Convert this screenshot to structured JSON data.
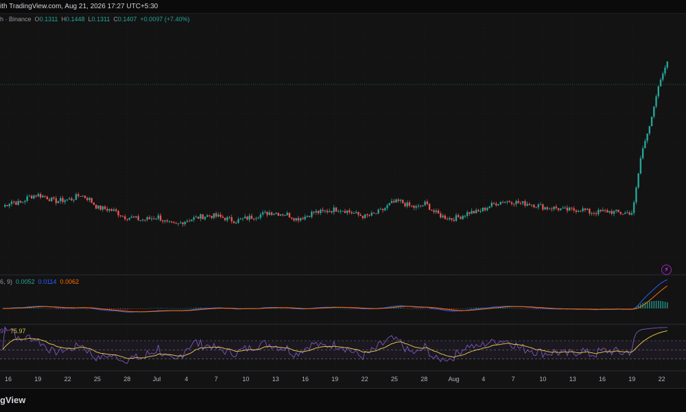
{
  "header": {
    "snapshot_text": "ith TradingView.com, Aug 21, 2026 17:27 UTC+5:30"
  },
  "legend": {
    "symbol_text": "h · Binance",
    "open_label": "O",
    "open": "0.1311",
    "high_label": "H",
    "high": "0.1448",
    "low_label": "L",
    "low": "0.1311",
    "close_label": "C",
    "close": "0.1407",
    "change": "+0.0097 (+7.40%)"
  },
  "macd_legend": {
    "params": "6, 9)",
    "histogram": "0.0052",
    "macd": "0.0114",
    "signal": "0.0062"
  },
  "rsi_legend": {
    "rsi": "97",
    "rsi_ma": "75.97"
  },
  "footer": {
    "logo_text": "gView"
  },
  "colors": {
    "up": "#26a69a",
    "down": "#ef5350",
    "macd_line": "#2962ff",
    "signal_line": "#ff6d00",
    "rsi_line": "#7e57c2",
    "rsi_ma": "#e0c34a",
    "grid": "#1f1f1f",
    "background": "#131313"
  },
  "chart_data": {
    "type": "candlestick",
    "x_ticks": [
      "16",
      "19",
      "22",
      "25",
      "28",
      "Jul",
      "4",
      "7",
      "10",
      "13",
      "16",
      "19",
      "22",
      "25",
      "28",
      "Aug",
      "4",
      "7",
      "10",
      "13",
      "16",
      "19",
      "22"
    ],
    "price_scale": {
      "min": 0.05,
      "max": 0.15
    },
    "price_series": [
      0.0745,
      0.077,
      0.076,
      0.079,
      0.08,
      0.079,
      0.077,
      0.0775,
      0.078,
      0.08,
      0.078,
      0.074,
      0.0735,
      0.0725,
      0.07,
      0.0695,
      0.0685,
      0.069,
      0.07,
      0.067,
      0.066,
      0.068,
      0.069,
      0.07,
      0.0705,
      0.07,
      0.069,
      0.068,
      0.069,
      0.07,
      0.071,
      0.072,
      0.0715,
      0.071,
      0.069,
      0.07,
      0.072,
      0.072,
      0.073,
      0.0735,
      0.0725,
      0.071,
      0.07,
      0.071,
      0.073,
      0.076,
      0.077,
      0.075,
      0.074,
      0.076,
      0.072,
      0.07,
      0.069,
      0.07,
      0.072,
      0.072,
      0.074,
      0.076,
      0.077,
      0.077,
      0.076,
      0.076,
      0.075,
      0.074,
      0.074,
      0.073,
      0.073,
      0.0735,
      0.072,
      0.072,
      0.0725,
      0.072,
      0.0715,
      0.072,
      0.099,
      0.112,
      0.13,
      0.1407
    ],
    "macd": {
      "macd_last": 0.0114,
      "signal_last": 0.0062,
      "histogram_last": 0.0052
    },
    "rsi": {
      "rsi_last": 97,
      "rsi_ma_last": 75.97,
      "bands": [
        30,
        50,
        70
      ]
    }
  }
}
